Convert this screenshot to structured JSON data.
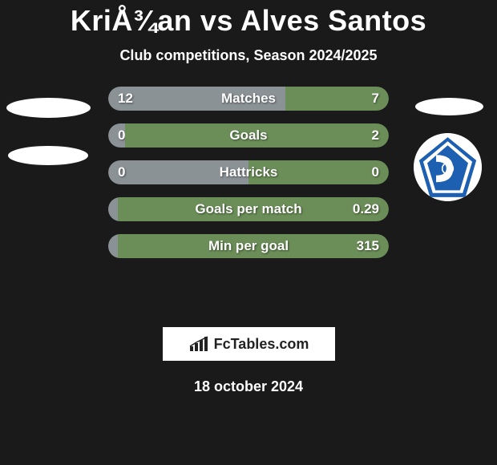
{
  "title": "KriÅ¾an vs Alves Santos",
  "subtitle": "Club competitions, Season 2024/2025",
  "colors": {
    "left": "#8b9296",
    "right": "#6b8e58",
    "background": "#1a1a1a",
    "badge_bg": "#ffffff",
    "crest_blue": "#1d5fb0",
    "crest_white": "#ffffff"
  },
  "stats": [
    {
      "label": "Matches",
      "left_val": "12",
      "right_val": "7",
      "left_pct": 63
    },
    {
      "label": "Goals",
      "left_val": "0",
      "right_val": "2",
      "left_pct": 6
    },
    {
      "label": "Hattricks",
      "left_val": "0",
      "right_val": "0",
      "left_pct": 50
    },
    {
      "label": "Goals per match",
      "left_val": "",
      "right_val": "0.29",
      "left_pct": 1
    },
    {
      "label": "Min per goal",
      "left_val": "",
      "right_val": "315",
      "left_pct": 1
    }
  ],
  "brand": "FcTables.com",
  "date": "18 october 2024"
}
